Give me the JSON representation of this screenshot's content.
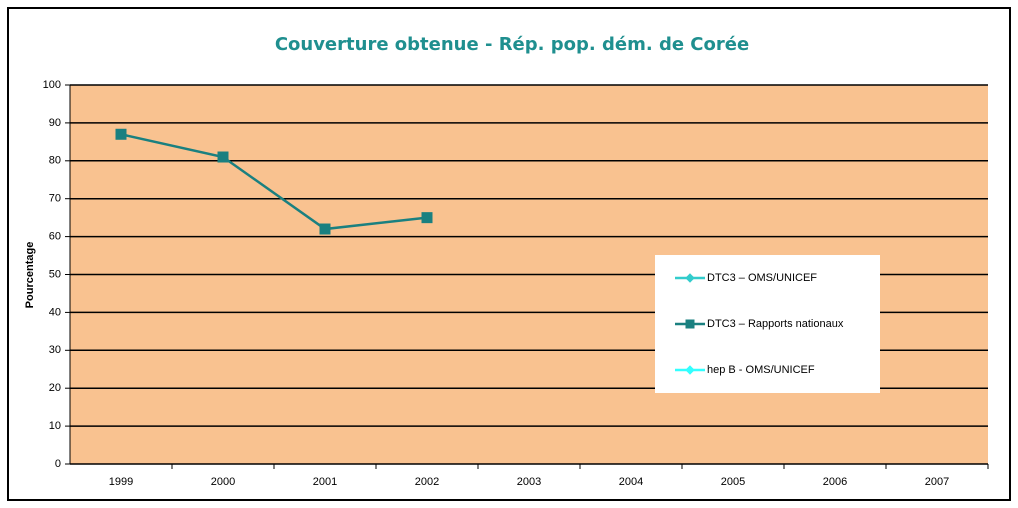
{
  "chart_data": {
    "type": "line",
    "title": "Couverture obtenue  - Rép. pop. dém. de Corée",
    "y_label": "Pourcentage",
    "categories": [
      "1999",
      "2000",
      "2001",
      "2002",
      "2003",
      "2004",
      "2005",
      "2006",
      "2007"
    ],
    "series": [
      {
        "name": "DTC3 – OMS/UNICEF",
        "color": "#33cccc",
        "marker": "diamond",
        "values": [
          null,
          null,
          null,
          null,
          null,
          null,
          null,
          null,
          null
        ]
      },
      {
        "name": "DTC3 – Rapports nationaux",
        "color": "#1a8080",
        "marker": "square",
        "values": [
          87,
          81,
          62,
          65,
          null,
          null,
          null,
          null,
          null
        ]
      },
      {
        "name": "hep B - OMS/UNICEF",
        "color": "#33ffff",
        "marker": "diamond",
        "values": [
          null,
          null,
          null,
          null,
          null,
          null,
          null,
          null,
          null
        ]
      }
    ],
    "ylim": [
      0,
      100
    ],
    "yticks": [
      0,
      10,
      20,
      30,
      40,
      50,
      60,
      70,
      80,
      90,
      100
    ],
    "grid": true,
    "plot_background": "#f9c290"
  }
}
